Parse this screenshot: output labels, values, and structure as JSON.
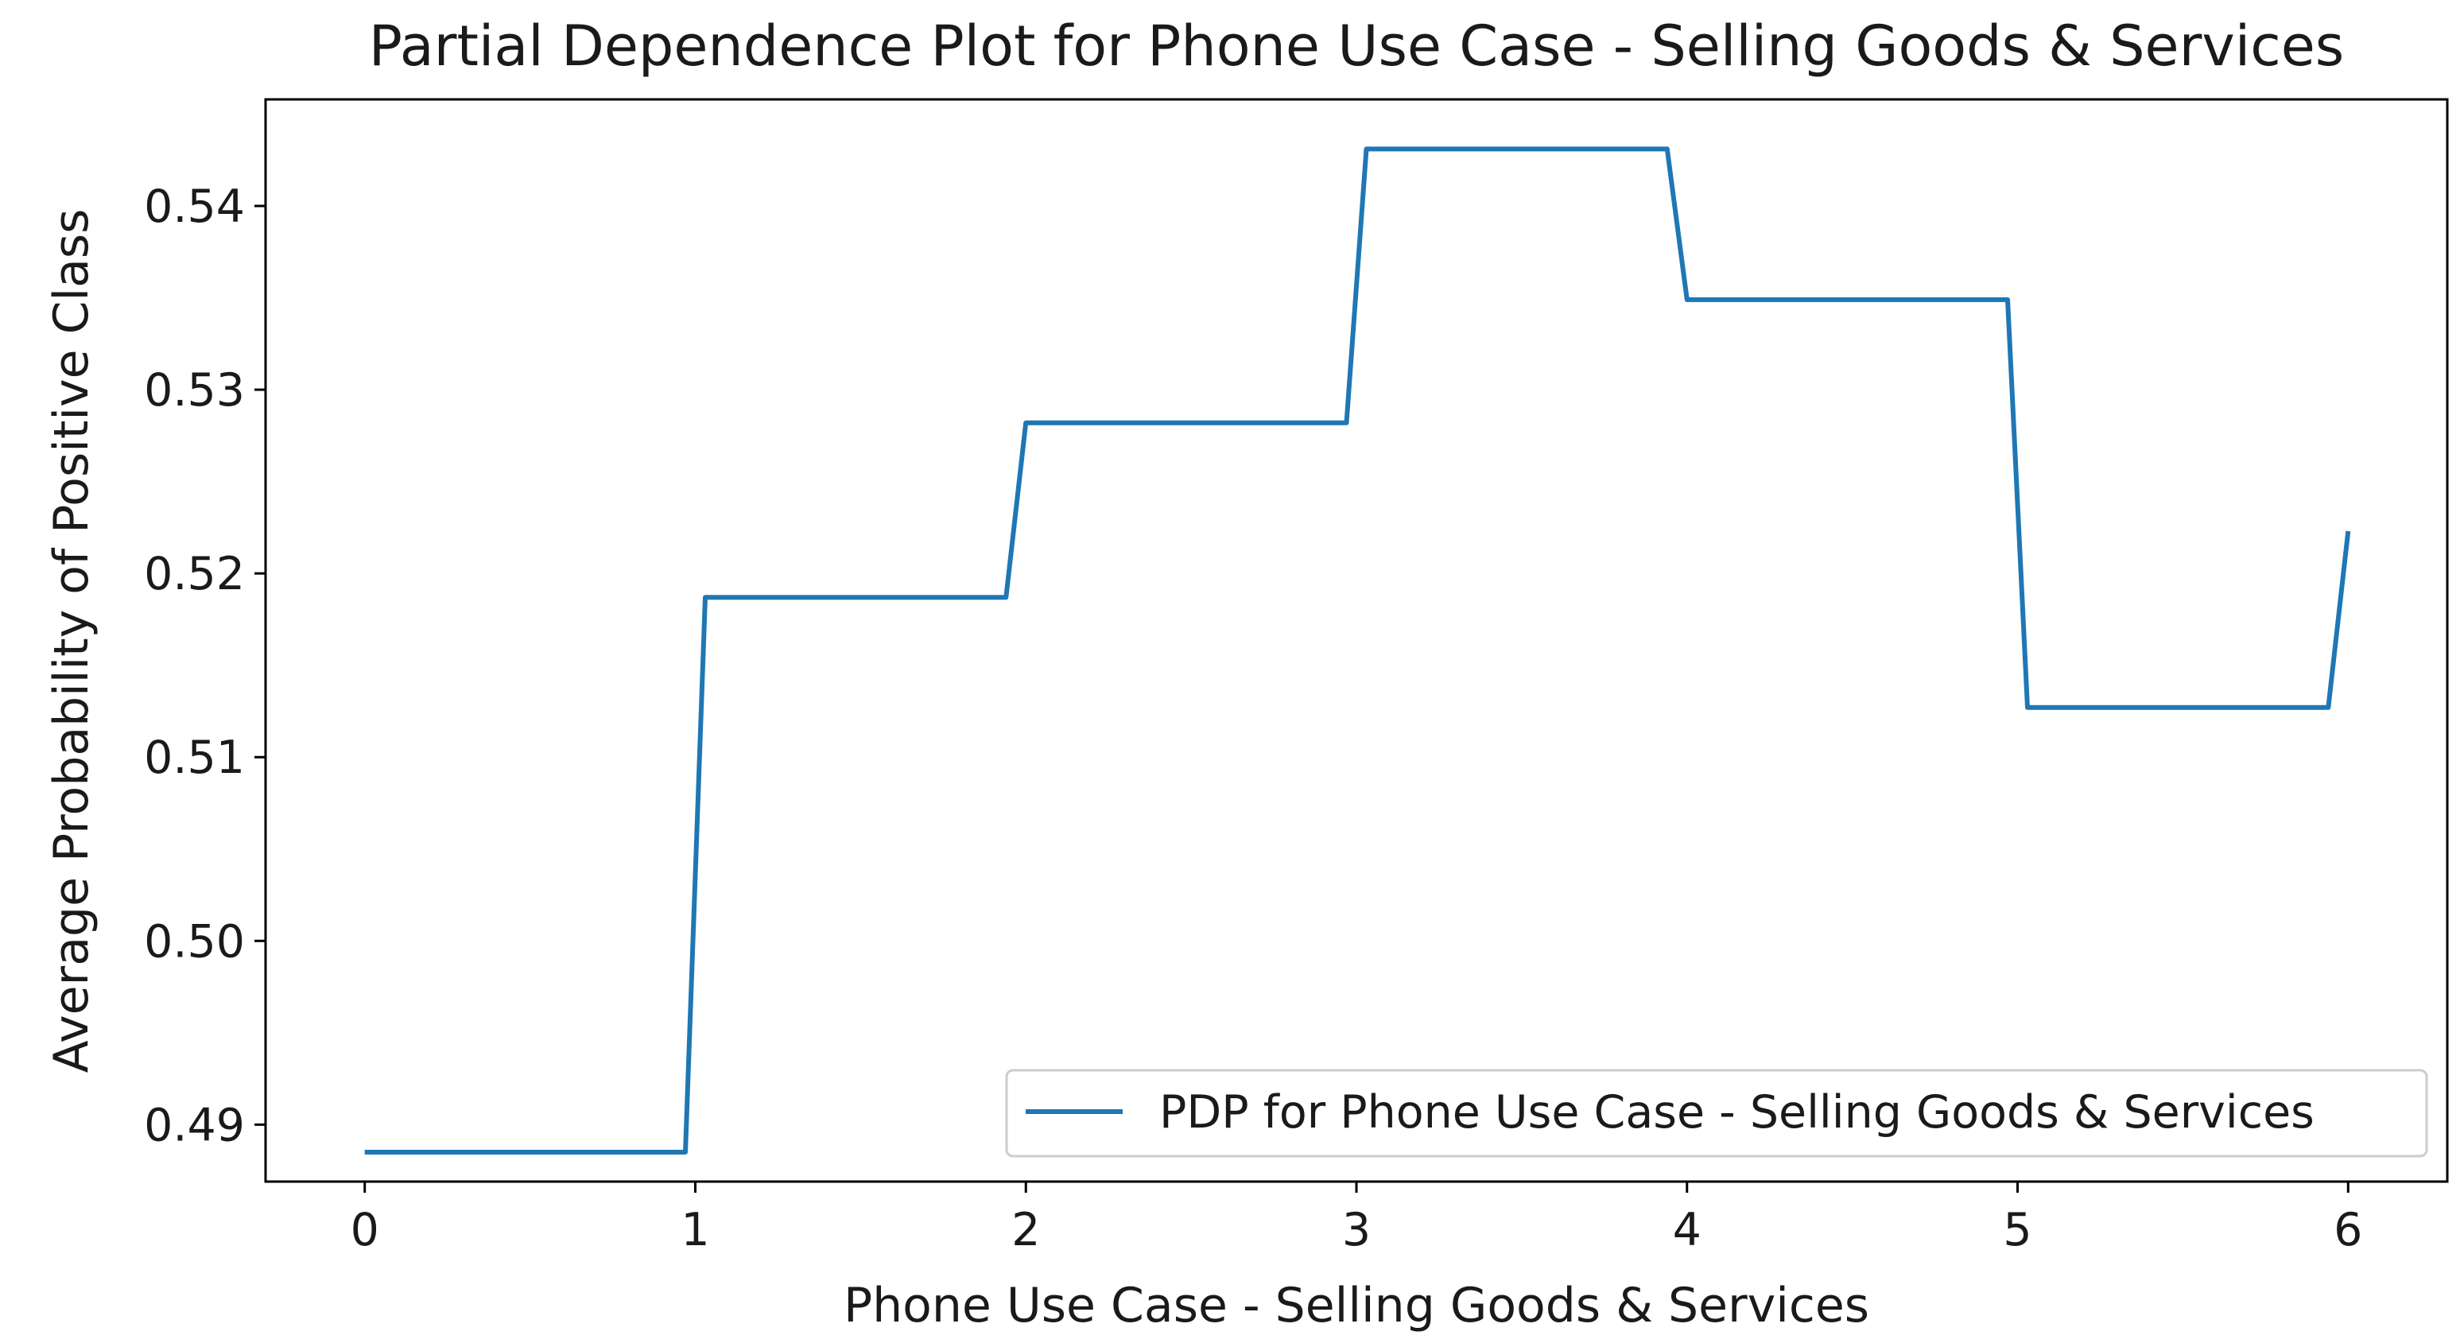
{
  "chart_data": {
    "type": "line",
    "title": "Partial Dependence Plot for Phone Use Case - Selling Goods & Services",
    "xlabel": "Phone Use Case - Selling Goods & Services",
    "ylabel": "Average Probability of Positive Class",
    "xlim": [
      -0.3,
      6.3
    ],
    "ylim": [
      0.4869,
      0.5458
    ],
    "xticks": [
      0,
      1,
      2,
      3,
      4,
      5,
      6
    ],
    "xtick_labels": [
      "0",
      "1",
      "2",
      "3",
      "4",
      "5",
      "6"
    ],
    "yticks": [
      0.49,
      0.5,
      0.51,
      0.52,
      0.53,
      0.54
    ],
    "ytick_labels": [
      "0.49",
      "0.50",
      "0.51",
      "0.52",
      "0.53",
      "0.54"
    ],
    "grid": false,
    "legend_position": "lower-right",
    "series": [
      {
        "name": "PDP for Phone Use Case - Selling Goods & Services",
        "color": "#1f77b4",
        "x": [
          0,
          0.97,
          1.03,
          1.94,
          2.0,
          2.97,
          3.03,
          3.94,
          4.0,
          4.97,
          5.03,
          5.94,
          6.0
        ],
        "y": [
          0.4885,
          0.4885,
          0.5187,
          0.5187,
          0.5282,
          0.5282,
          0.5431,
          0.5431,
          0.5349,
          0.5349,
          0.5127,
          0.5127,
          0.5223
        ]
      }
    ]
  }
}
